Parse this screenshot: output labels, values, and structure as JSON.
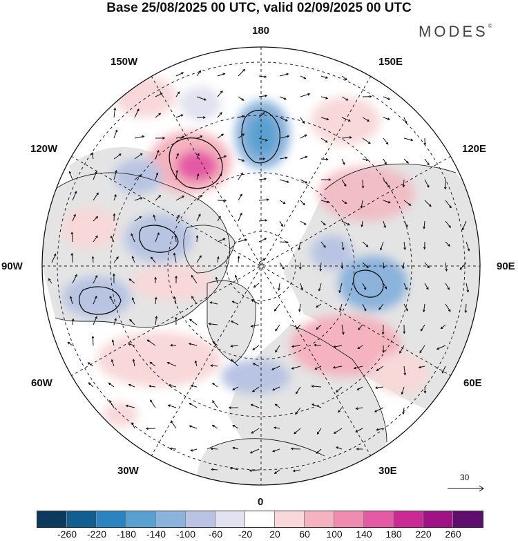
{
  "title": "Base 25/08/2025 00 UTC, valid 02/09/2025 00 UTC",
  "brand": "MODES",
  "brand_mark": "©",
  "longitude_labels": {
    "top": "180",
    "top_left": "150W",
    "top_right": "150E",
    "upper_left": "120W",
    "upper_right": "120E",
    "left": "90W",
    "right": "90E",
    "lower_left": "60W",
    "lower_right": "60E",
    "bottom_left": "30W",
    "bottom_right": "30E",
    "bottom": "0"
  },
  "wind_reference": {
    "value": "30",
    "icon": "arrow-right-icon"
  },
  "colorbar": {
    "colors": [
      "#0b3a5c",
      "#125f8f",
      "#2a84bf",
      "#5aa0d0",
      "#8bb3dc",
      "#b8c4e2",
      "#e2e2f0",
      "#ffffff",
      "#f8d8d8",
      "#f4b3be",
      "#f08cb0",
      "#e55aa5",
      "#c92a93",
      "#9e1485",
      "#5e0f6e"
    ],
    "tick_labels": [
      "-260",
      "-220",
      "-180",
      "-140",
      "-100",
      "-60",
      "-20",
      "20",
      "60",
      "100",
      "140",
      "180",
      "220",
      "260"
    ]
  },
  "colors": {
    "land": "#e4e4e4",
    "ocean": "#ffffff",
    "positive": "#f4b3be",
    "negative": "#8bb3dc"
  }
}
